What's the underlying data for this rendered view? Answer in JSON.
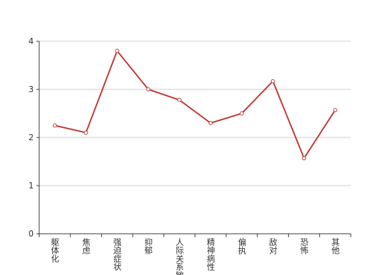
{
  "chart_data": {
    "type": "line",
    "categories": [
      "躯体化",
      "焦虑",
      "强迫症状",
      "抑郁",
      "人际关系敏感",
      "精神病性",
      "偏执",
      "敌对",
      "恐怖",
      "其他"
    ],
    "series": [
      {
        "color": "#c23531",
        "values": [
          2.25,
          2.1,
          3.8,
          3.0,
          2.78,
          2.3,
          2.5,
          3.17,
          1.57,
          2.57
        ]
      }
    ],
    "ylim": [
      0,
      4
    ],
    "yticks": [
      0,
      1,
      2,
      3,
      4
    ],
    "grid": true
  }
}
